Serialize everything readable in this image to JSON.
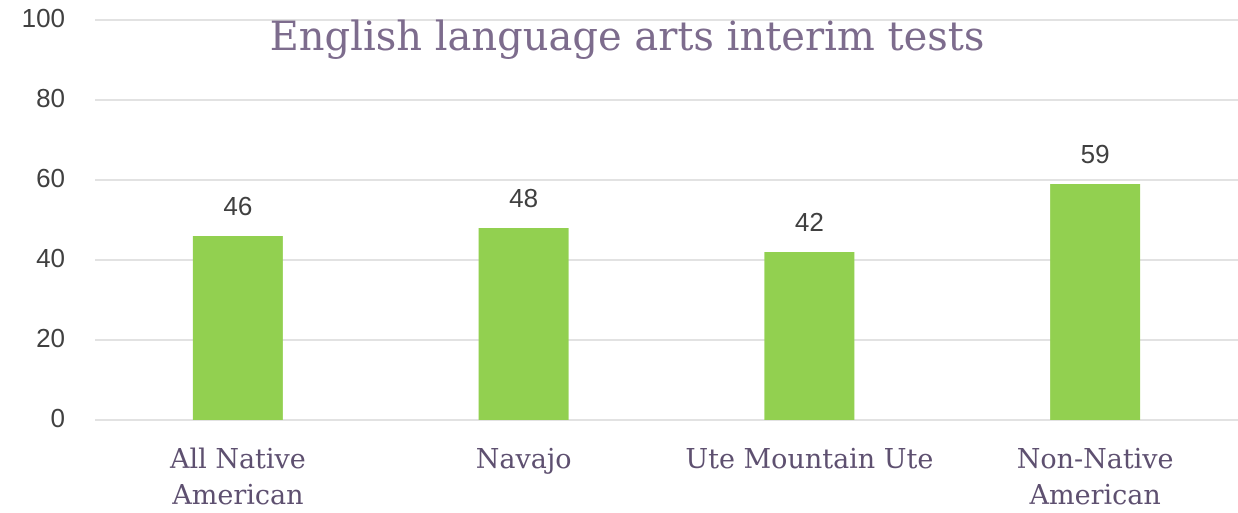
{
  "chart_data": {
    "type": "bar",
    "title": "English language arts interim tests",
    "categories": [
      "All Native American",
      "Navajo",
      "Ute Mountain Ute",
      "Non-Native American"
    ],
    "values": [
      46,
      48,
      42,
      59
    ],
    "color": "#92d050",
    "ylim": [
      0,
      100
    ],
    "yticks": [
      0,
      20,
      40,
      60,
      80,
      100
    ],
    "grid": true
  }
}
